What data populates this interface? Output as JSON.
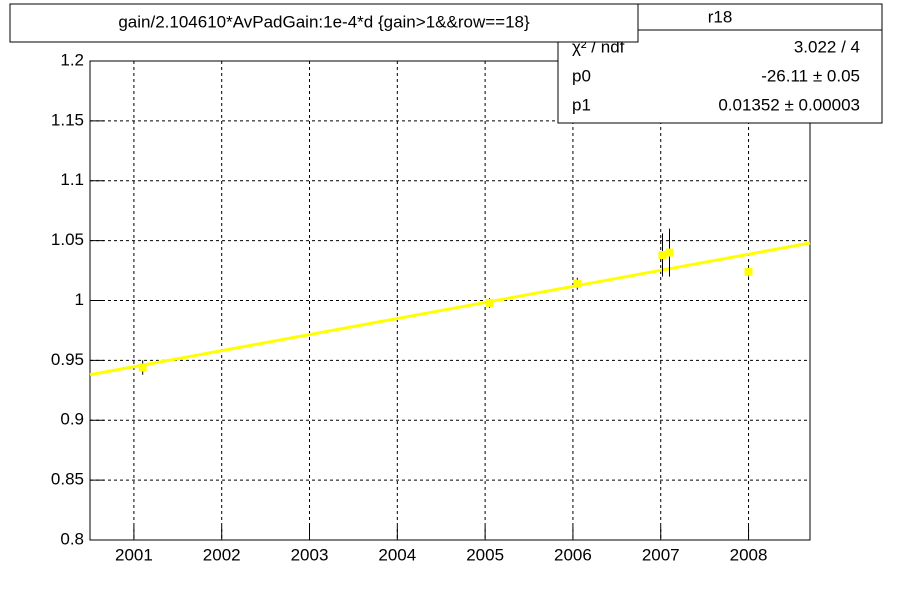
{
  "chart_data": {
    "type": "scatter",
    "title": "gain/2.104610*AvPadGain:1e-4*d  {gain>1&&row==18}",
    "x": [
      2001.1,
      2005.05,
      2006.05,
      2007.02,
      2007.1,
      2008.0
    ],
    "series": [
      {
        "name": "r18",
        "color": "#ffff00",
        "values": [
          0.944,
          0.998,
          1.014,
          1.038,
          1.04,
          1.024
        ],
        "errors": [
          0.006,
          0.004,
          0.005,
          0.018,
          0.02,
          0.004
        ]
      }
    ],
    "fit": {
      "color": "#ffff00",
      "x": [
        2000.5,
        2008.7
      ],
      "values": [
        0.938,
        1.048
      ]
    },
    "stats": {
      "title": "r18",
      "rows": [
        [
          "χ² / ndf",
          "3.022 / 4"
        ],
        [
          "p0",
          "-26.11 ± 0.05"
        ],
        [
          "p1",
          "0.01352  ± 0.00003"
        ]
      ]
    },
    "xlim": [
      2000.5,
      2008.7
    ],
    "xticks": [
      2001,
      2002,
      2003,
      2004,
      2005,
      2006,
      2007,
      2008
    ],
    "ylim": [
      0.8,
      1.2
    ],
    "yticks": [
      0.8,
      0.85,
      0.9,
      0.95,
      1,
      1.05,
      1.1,
      1.15,
      1.2
    ],
    "grid": true
  }
}
